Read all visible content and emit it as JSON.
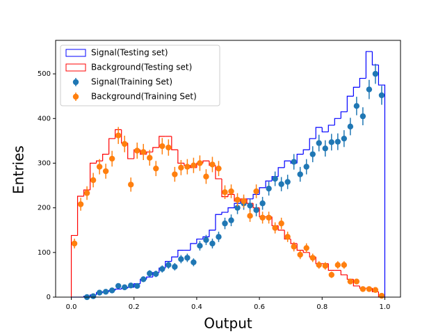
{
  "chart_data": {
    "type": "histogram",
    "xlabel": "Output",
    "ylabel": "Entries",
    "bins": [
      0,
      0.02,
      0.04,
      0.06,
      0.08,
      0.1,
      0.12,
      0.14,
      0.16,
      0.18,
      0.2,
      0.22,
      0.24,
      0.26,
      0.28,
      0.3,
      0.32,
      0.34,
      0.36,
      0.38,
      0.4,
      0.42,
      0.44,
      0.46,
      0.48,
      0.5,
      0.52,
      0.54,
      0.56,
      0.58,
      0.6,
      0.62,
      0.64,
      0.66,
      0.68,
      0.7,
      0.72,
      0.74,
      0.76,
      0.78,
      0.8,
      0.82,
      0.84,
      0.86,
      0.88,
      0.9,
      0.92,
      0.94,
      0.96,
      0.98,
      1
    ],
    "xlim": [
      -0.05,
      1.05
    ],
    "ylim": [
      0,
      575
    ],
    "xticks": [
      {
        "value": 0,
        "label": "0.0"
      },
      {
        "value": 0.2,
        "label": "0.2"
      },
      {
        "value": 0.4,
        "label": "0.4"
      },
      {
        "value": 0.6,
        "label": "0.6"
      },
      {
        "value": 0.8,
        "label": "0.8"
      },
      {
        "value": 1,
        "label": "1.0"
      }
    ],
    "yticks": [
      0,
      100,
      200,
      300,
      400,
      500
    ],
    "legend_loc": "upper left",
    "series": [
      {
        "name": "Signal(Testing set)",
        "color": "#0000ff",
        "style": "step",
        "values": [
          0,
          0,
          2,
          5,
          10,
          12,
          15,
          18,
          20,
          22,
          30,
          40,
          45,
          55,
          65,
          80,
          90,
          105,
          105,
          120,
          130,
          135,
          150,
          185,
          190,
          200,
          210,
          215,
          220,
          230,
          245,
          260,
          270,
          290,
          305,
          300,
          320,
          330,
          355,
          380,
          370,
          385,
          400,
          415,
          450,
          470,
          490,
          550,
          520,
          475
        ]
      },
      {
        "name": "Background(Testing set)",
        "color": "#ff0000",
        "style": "step",
        "values": [
          138,
          226,
          240,
          300,
          305,
          320,
          355,
          375,
          345,
          310,
          330,
          320,
          325,
          335,
          360,
          360,
          330,
          300,
          295,
          290,
          300,
          305,
          295,
          265,
          225,
          230,
          215,
          220,
          210,
          200,
          180,
          180,
          160,
          150,
          130,
          120,
          105,
          100,
          90,
          75,
          75,
          60,
          60,
          50,
          40,
          25,
          20,
          20,
          12,
          0
        ]
      },
      {
        "name": "Signal(Training Set)",
        "color": "#1f77b4",
        "style": "errorbar",
        "values": [
          null,
          null,
          0,
          2,
          10,
          12,
          15,
          25,
          22,
          26,
          25,
          40,
          53,
          52,
          63,
          72,
          68,
          85,
          88,
          78,
          115,
          128,
          120,
          135,
          165,
          172,
          200,
          210,
          205,
          195,
          210,
          243,
          265,
          253,
          258,
          303,
          275,
          292,
          320,
          345,
          333,
          347,
          348,
          355,
          382,
          428,
          405,
          465,
          500,
          452
        ]
      },
      {
        "name": "Background(Training Set)",
        "color": "#ff7f0e",
        "style": "errorbar",
        "values": [
          120,
          208,
          233,
          262,
          292,
          282,
          310,
          362,
          343,
          252,
          328,
          325,
          312,
          288,
          338,
          335,
          275,
          290,
          292,
          295,
          300,
          270,
          297,
          288,
          235,
          237,
          218,
          215,
          182,
          237,
          178,
          178,
          155,
          165,
          135,
          113,
          95,
          110,
          88,
          72,
          70,
          50,
          72,
          72,
          35,
          35,
          18,
          18,
          16,
          3
        ]
      }
    ]
  }
}
